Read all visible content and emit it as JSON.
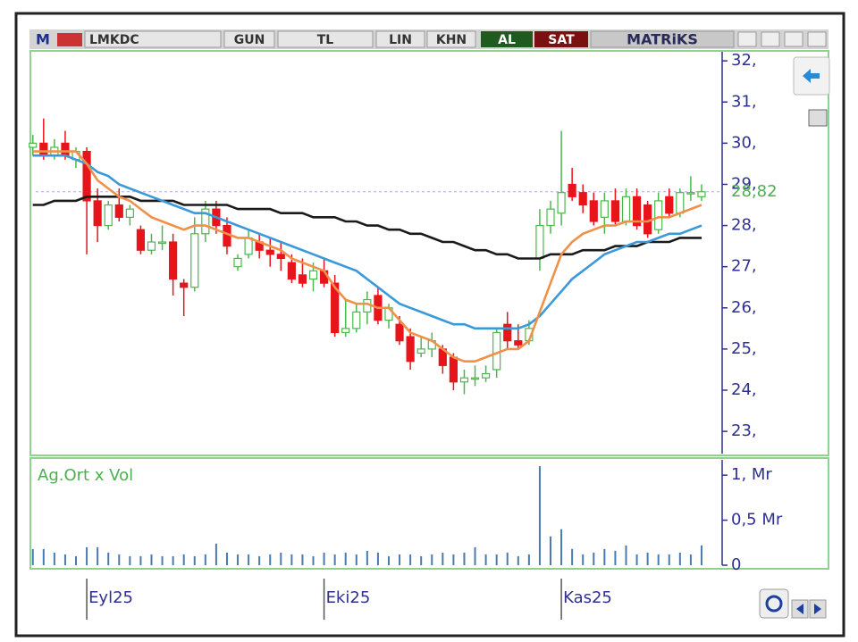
{
  "toolbar": {
    "m": "M",
    "symbol": "LMKDC",
    "period": "GUN",
    "currency": "TL",
    "scale": "LIN",
    "khn": "KHN",
    "buy": "AL",
    "sell": "SAT",
    "brand": "MATRiKS"
  },
  "chart_data": {
    "type": "candlestick",
    "categories": [
      null,
      null,
      null,
      null,
      null,
      "Eyl25",
      null,
      null,
      null,
      null,
      null,
      null,
      null,
      null,
      null,
      null,
      null,
      null,
      null,
      null,
      null,
      null,
      null,
      null,
      null,
      null,
      null,
      "Eki25",
      null,
      null,
      null,
      null,
      null,
      null,
      null,
      null,
      null,
      null,
      null,
      null,
      null,
      null,
      null,
      null,
      null,
      null,
      null,
      null,
      null,
      "Kas25",
      null,
      null,
      null,
      null,
      null,
      null,
      null,
      null,
      null,
      null,
      null,
      null,
      null
    ],
    "open": [
      29.9,
      30.0,
      29.7,
      30.0,
      29.6,
      29.8,
      28.6,
      28.0,
      28.5,
      28.2,
      27.9,
      27.4,
      27.6,
      27.6,
      26.6,
      26.5,
      27.8,
      28.4,
      28.0,
      27.0,
      27.3,
      27.6,
      27.4,
      27.3,
      27.1,
      26.8,
      26.7,
      26.9,
      26.6,
      25.4,
      25.5,
      25.9,
      26.3,
      25.7,
      25.6,
      25.3,
      24.9,
      25.0,
      25.0,
      24.8,
      24.2,
      24.3,
      24.3,
      24.5,
      25.6,
      25.2,
      25.2,
      27.2,
      28.0,
      28.3,
      29.0,
      28.8,
      28.6,
      28.2,
      28.6,
      28.1,
      28.7,
      28.5,
      27.9,
      28.7,
      28.3,
      28.8,
      28.7
    ],
    "high": [
      30.2,
      30.6,
      30.1,
      30.3,
      29.9,
      29.9,
      28.9,
      28.6,
      28.9,
      28.5,
      28.0,
      27.8,
      28.0,
      27.8,
      26.7,
      28.2,
      28.6,
      28.6,
      28.2,
      27.3,
      27.9,
      27.8,
      27.7,
      27.6,
      27.3,
      27.2,
      27.1,
      27.2,
      26.8,
      26.2,
      26.1,
      26.4,
      26.5,
      26.1,
      25.8,
      25.5,
      25.3,
      25.4,
      25.1,
      24.9,
      24.5,
      24.6,
      24.6,
      25.5,
      25.9,
      25.6,
      25.7,
      28.4,
      28.6,
      30.3,
      29.4,
      29.0,
      28.8,
      28.8,
      28.9,
      28.9,
      28.9,
      28.6,
      28.8,
      28.9,
      28.9,
      29.2,
      29.0
    ],
    "low": [
      29.7,
      29.6,
      29.6,
      29.6,
      29.4,
      27.3,
      27.6,
      27.9,
      28.1,
      28.0,
      27.3,
      27.3,
      27.4,
      26.3,
      25.8,
      26.4,
      27.6,
      27.8,
      27.3,
      26.9,
      27.2,
      27.2,
      27.0,
      26.9,
      26.6,
      26.5,
      26.4,
      26.5,
      25.3,
      25.3,
      25.4,
      25.6,
      25.6,
      25.5,
      25.1,
      24.5,
      24.8,
      24.8,
      24.4,
      24.0,
      23.9,
      24.1,
      24.2,
      24.3,
      25.0,
      25.0,
      25.1,
      26.9,
      27.8,
      28.0,
      28.6,
      28.3,
      28.0,
      27.8,
      28.0,
      28.0,
      27.9,
      27.7,
      27.8,
      28.2,
      28.2,
      28.6,
      28.6
    ],
    "close": [
      30.0,
      29.7,
      29.9,
      29.7,
      29.8,
      28.6,
      28.0,
      28.5,
      28.2,
      28.4,
      27.4,
      27.6,
      27.6,
      26.7,
      26.5,
      27.8,
      28.4,
      28.0,
      27.5,
      27.2,
      27.7,
      27.4,
      27.3,
      27.2,
      26.7,
      26.6,
      26.9,
      26.6,
      25.4,
      25.5,
      25.9,
      26.2,
      25.7,
      26.0,
      25.2,
      24.7,
      25.0,
      25.2,
      24.6,
      24.2,
      24.3,
      24.3,
      24.4,
      25.4,
      25.2,
      25.1,
      25.5,
      28.0,
      28.4,
      28.8,
      28.7,
      28.5,
      28.1,
      28.6,
      28.1,
      28.7,
      28.0,
      27.8,
      28.6,
      28.3,
      28.8,
      28.8,
      28.82
    ],
    "up_color": "#4cb84c",
    "down_color": "#e8141c",
    "ylim": [
      22.46,
      32.22
    ],
    "yticks": [
      {
        "value": 23,
        "label": "23,"
      },
      {
        "value": 24,
        "label": "24,"
      },
      {
        "value": 25,
        "label": "25,"
      },
      {
        "value": 26,
        "label": "26,"
      },
      {
        "value": 27,
        "label": "27,"
      },
      {
        "value": 28,
        "label": "28,"
      },
      {
        "value": 29,
        "label": "29,"
      },
      {
        "value": 30,
        "label": "30,"
      },
      {
        "value": 31,
        "label": "31,"
      },
      {
        "value": 32,
        "label": "32,"
      }
    ],
    "last_value": {
      "value": 28.82,
      "label": "28,82"
    },
    "lines": [
      {
        "color": "#1a1a1a",
        "values": [
          28.5,
          28.5,
          28.6,
          28.6,
          28.6,
          28.7,
          28.7,
          28.7,
          28.7,
          28.7,
          28.6,
          28.6,
          28.6,
          28.6,
          28.5,
          28.5,
          28.5,
          28.5,
          28.5,
          28.4,
          28.4,
          28.4,
          28.4,
          28.3,
          28.3,
          28.3,
          28.2,
          28.2,
          28.2,
          28.1,
          28.1,
          28.0,
          28.0,
          27.9,
          27.9,
          27.8,
          27.8,
          27.7,
          27.6,
          27.6,
          27.5,
          27.4,
          27.4,
          27.3,
          27.3,
          27.2,
          27.2,
          27.2,
          27.3,
          27.3,
          27.3,
          27.4,
          27.4,
          27.4,
          27.5,
          27.5,
          27.5,
          27.6,
          27.6,
          27.6,
          27.7,
          27.7,
          27.7
        ]
      },
      {
        "color": "#3a9ad9",
        "values": [
          29.7,
          29.7,
          29.7,
          29.7,
          29.6,
          29.5,
          29.3,
          29.2,
          29.0,
          28.9,
          28.8,
          28.7,
          28.6,
          28.5,
          28.4,
          28.3,
          28.3,
          28.2,
          28.1,
          28.0,
          27.9,
          27.8,
          27.7,
          27.6,
          27.5,
          27.4,
          27.3,
          27.2,
          27.1,
          27.0,
          26.9,
          26.7,
          26.5,
          26.3,
          26.1,
          26.0,
          25.9,
          25.8,
          25.7,
          25.6,
          25.6,
          25.5,
          25.5,
          25.5,
          25.5,
          25.5,
          25.6,
          25.8,
          26.1,
          26.4,
          26.7,
          26.9,
          27.1,
          27.3,
          27.4,
          27.5,
          27.6,
          27.6,
          27.7,
          27.8,
          27.8,
          27.9,
          28.0
        ]
      },
      {
        "color": "#f0914a",
        "values": [
          29.8,
          29.8,
          29.8,
          29.8,
          29.8,
          29.5,
          29.1,
          28.9,
          28.7,
          28.6,
          28.4,
          28.2,
          28.1,
          28.0,
          27.9,
          28.0,
          28.0,
          27.9,
          27.8,
          27.7,
          27.7,
          27.6,
          27.5,
          27.4,
          27.2,
          27.1,
          27.0,
          26.9,
          26.5,
          26.2,
          26.1,
          26.1,
          26.0,
          26.0,
          25.7,
          25.4,
          25.3,
          25.2,
          25.0,
          24.8,
          24.7,
          24.7,
          24.8,
          24.9,
          25.0,
          25.0,
          25.2,
          25.9,
          26.6,
          27.3,
          27.6,
          27.8,
          27.9,
          28.0,
          28.0,
          28.1,
          28.1,
          28.1,
          28.2,
          28.2,
          28.3,
          28.4,
          28.5
        ]
      }
    ],
    "volume": {
      "title": "Ag.Ort x Vol",
      "color": "#4a7ab0",
      "values": [
        0.18,
        0.18,
        0.14,
        0.12,
        0.1,
        0.2,
        0.2,
        0.14,
        0.12,
        0.1,
        0.1,
        0.12,
        0.1,
        0.1,
        0.12,
        0.1,
        0.12,
        0.24,
        0.14,
        0.12,
        0.12,
        0.1,
        0.12,
        0.14,
        0.12,
        0.12,
        0.1,
        0.14,
        0.12,
        0.14,
        0.12,
        0.16,
        0.14,
        0.1,
        0.12,
        0.12,
        0.1,
        0.12,
        0.14,
        0.12,
        0.14,
        0.2,
        0.12,
        0.12,
        0.14,
        0.1,
        0.12,
        1.1,
        0.32,
        0.4,
        0.18,
        0.12,
        0.14,
        0.18,
        0.16,
        0.22,
        0.12,
        0.14,
        0.12,
        0.12,
        0.14,
        0.12,
        0.22
      ],
      "ylim": [
        0,
        1.17
      ],
      "yticks": [
        0,
        {
          "value": 0.5,
          "label": "0,5 Mr"
        },
        {
          "value": 1,
          "label": "1, Mr"
        }
      ]
    }
  }
}
